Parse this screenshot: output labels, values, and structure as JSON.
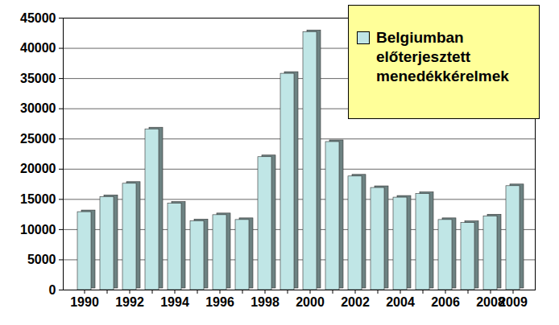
{
  "chart_data": {
    "type": "bar",
    "categories": [
      "1990",
      null,
      "1992",
      null,
      "1994",
      null,
      "1996",
      null,
      "1998",
      null,
      "2000",
      null,
      "2002",
      null,
      "2004",
      null,
      "2006",
      null,
      "2008",
      "2009"
    ],
    "series": [
      {
        "name": "Belgiumban előterjesztett menedékkérelmek",
        "color": "#c0e6e6",
        "values": [
          12900,
          15400,
          17600,
          26600,
          14300,
          11400,
          12400,
          11600,
          22000,
          35800,
          42700,
          24500,
          18800,
          16900,
          15300,
          15900,
          11600,
          11100,
          12200,
          17200
        ]
      }
    ],
    "ylim": [
      0,
      45000
    ],
    "yticks": [
      0,
      5000,
      10000,
      15000,
      20000,
      25000,
      30000,
      35000,
      40000,
      45000
    ],
    "grid": true,
    "legend": "top-right"
  }
}
